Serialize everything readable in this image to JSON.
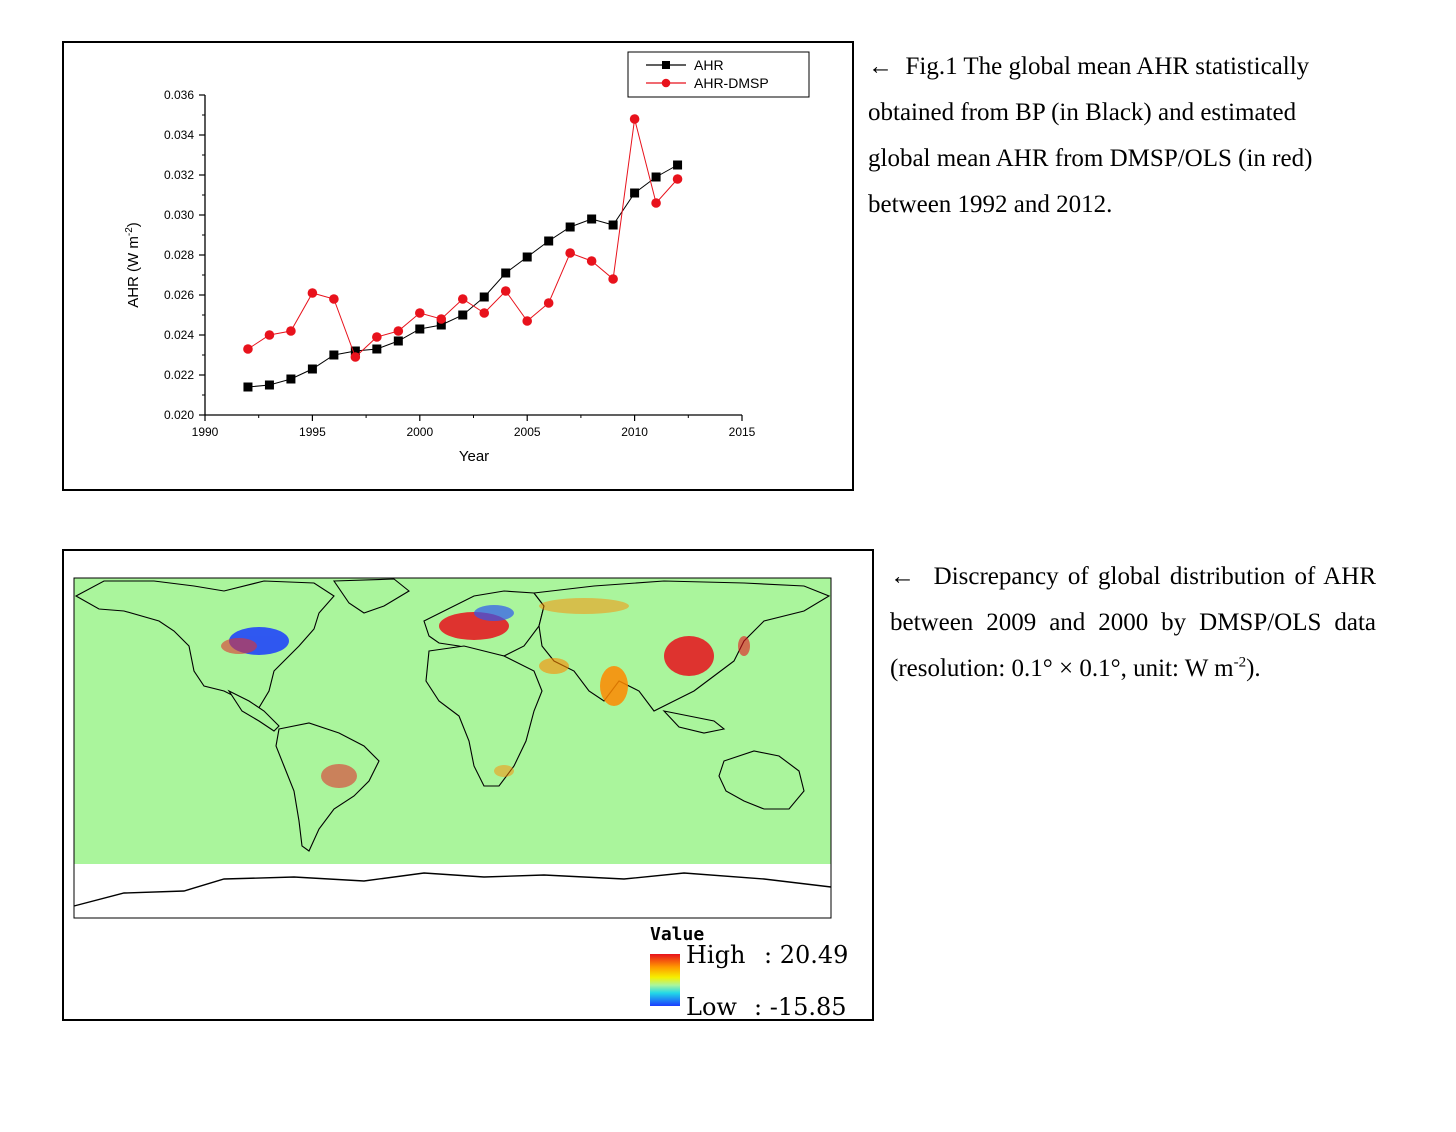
{
  "figure1": {
    "caption_arrow": "←",
    "caption": "Fig.1 The global mean AHR statistically obtained from BP (in Black) and estimated global mean AHR from DMSP/OLS (in red) between 1992 and 2012."
  },
  "chart_data": {
    "type": "line",
    "title": "",
    "xlabel": "Year",
    "ylabel_main": "AHR (W m",
    "ylabel_sup": "-2",
    "ylabel_end": ")",
    "xlim": [
      1990,
      2015
    ],
    "ylim": [
      0.02,
      0.036
    ],
    "xticks": [
      "1990",
      "1995",
      "2000",
      "2005",
      "2010",
      "2015"
    ],
    "yticks": [
      "0.020",
      "0.022",
      "0.024",
      "0.026",
      "0.028",
      "0.030",
      "0.032",
      "0.034",
      "0.036"
    ],
    "x": [
      1992,
      1993,
      1994,
      1995,
      1996,
      1997,
      1998,
      1999,
      2000,
      2001,
      2002,
      2003,
      2004,
      2005,
      2006,
      2007,
      2008,
      2009,
      2010,
      2011,
      2012
    ],
    "series": [
      {
        "name": "AHR",
        "color": "#000000",
        "marker": "square",
        "values": [
          0.0214,
          0.0215,
          0.0218,
          0.0223,
          0.023,
          0.0232,
          0.0233,
          0.0237,
          0.0243,
          0.0245,
          0.025,
          0.0259,
          0.0271,
          0.0279,
          0.0287,
          0.0294,
          0.0298,
          0.0295,
          0.0311,
          0.0319,
          0.0325
        ]
      },
      {
        "name": "AHR-DMSP",
        "color": "#e8121c",
        "marker": "circle",
        "values": [
          0.0233,
          0.024,
          0.0242,
          0.0261,
          0.0258,
          0.0229,
          0.0239,
          0.0242,
          0.0251,
          0.0248,
          0.0258,
          0.0251,
          0.0262,
          0.0247,
          0.0256,
          0.0281,
          0.0277,
          0.0268,
          0.0348,
          0.0306,
          0.0318
        ]
      }
    ],
    "legend_position": "top-right",
    "grid": false
  },
  "figure2": {
    "caption_arrow": "←",
    "caption_part1": "Discrepancy of global distribution of AHR between 2009 and 2000 by DMSP/OLS data (resolution: 0.1° × 0.1°, unit: W m",
    "caption_sup": "-2",
    "caption_part2": ").",
    "legend": {
      "title": "Value",
      "high_label": "High",
      "high_value": ": 20.49",
      "low_label": "Low",
      "low_value": ": -15.85"
    },
    "colors": {
      "background": "#aaf59c",
      "high": "#e8121c",
      "low": "#1a3cff"
    }
  }
}
